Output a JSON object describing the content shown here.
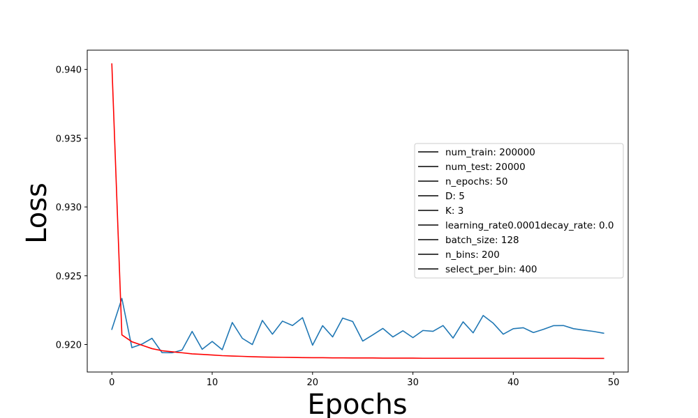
{
  "chart_data": {
    "type": "line",
    "title": "",
    "xlabel": "Epochs",
    "ylabel": "Loss",
    "xlim": [
      -2.45,
      51.45
    ],
    "ylim": [
      0.918,
      0.9414
    ],
    "xticks": [
      0,
      10,
      20,
      30,
      40,
      50
    ],
    "yticks": [
      0.92,
      0.925,
      0.93,
      0.935,
      0.94
    ],
    "ytick_labels": [
      "0.920",
      "0.925",
      "0.930",
      "0.935",
      "0.940"
    ],
    "grid": false,
    "legend_position": "center-right",
    "x": [
      0,
      1,
      2,
      3,
      4,
      5,
      6,
      7,
      8,
      9,
      10,
      11,
      12,
      13,
      14,
      15,
      16,
      17,
      18,
      19,
      20,
      21,
      22,
      23,
      24,
      25,
      26,
      27,
      28,
      29,
      30,
      31,
      32,
      33,
      34,
      35,
      36,
      37,
      38,
      39,
      40,
      41,
      42,
      43,
      44,
      45,
      46,
      47,
      48,
      49
    ],
    "series": [
      {
        "color": "#1f77b4",
        "values": [
          0.9211,
          0.92335,
          0.91977,
          0.92003,
          0.92045,
          0.91941,
          0.9194,
          0.9196,
          0.92095,
          0.91965,
          0.92022,
          0.91962,
          0.9216,
          0.92045,
          0.92,
          0.92175,
          0.92075,
          0.9217,
          0.92138,
          0.92195,
          0.91995,
          0.92137,
          0.92055,
          0.92192,
          0.92167,
          0.92025,
          0.9207,
          0.92117,
          0.92055,
          0.921,
          0.9205,
          0.92102,
          0.92096,
          0.92138,
          0.92047,
          0.92165,
          0.92085,
          0.92211,
          0.92155,
          0.92075,
          0.92115,
          0.92122,
          0.92087,
          0.9211,
          0.92137,
          0.92138,
          0.92115,
          0.92105,
          0.92095,
          0.92082
        ]
      },
      {
        "color": "#ff0000",
        "values": [
          0.9404,
          0.9207,
          0.9202,
          0.91995,
          0.9197,
          0.91955,
          0.91947,
          0.9194,
          0.91932,
          0.91928,
          0.91924,
          0.91919,
          0.91916,
          0.91914,
          0.91911,
          0.91909,
          0.91908,
          0.91907,
          0.91906,
          0.91905,
          0.91904,
          0.91904,
          0.91903,
          0.91903,
          0.91902,
          0.91902,
          0.91902,
          0.91901,
          0.91901,
          0.91901,
          0.91901,
          0.919,
          0.919,
          0.919,
          0.919,
          0.919,
          0.919,
          0.919,
          0.919,
          0.919,
          0.919,
          0.919,
          0.919,
          0.919,
          0.919,
          0.919,
          0.919,
          0.91899,
          0.91899,
          0.91899
        ]
      }
    ],
    "legend": [
      "num_train: 200000",
      "num_test: 20000",
      "n_epochs: 50",
      "D: 5",
      "K: 3",
      "learning_rate0.0001decay_rate: 0.0",
      "batch_size: 128",
      "n_bins: 200",
      "select_per_bin: 400"
    ]
  }
}
